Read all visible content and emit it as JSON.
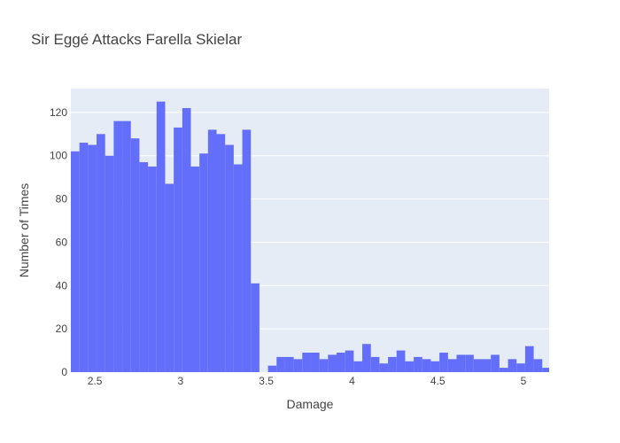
{
  "chart_data": {
    "type": "bar",
    "title": "Sir Eggé Attacks Farella Skielar",
    "xlabel": "Damage",
    "ylabel": "Number of Times",
    "xlim": [
      2.36,
      5.15
    ],
    "ylim": [
      0,
      131
    ],
    "xticks": [
      2.5,
      3,
      3.5,
      4,
      4.5,
      5
    ],
    "xtick_labels": [
      "2.5",
      "3",
      "3.5",
      "4",
      "4.5",
      "5"
    ],
    "yticks": [
      0,
      20,
      40,
      60,
      80,
      100,
      120
    ],
    "ytick_labels": [
      "0",
      "20",
      "40",
      "60",
      "80",
      "100",
      "120"
    ],
    "bin_start": 2.36,
    "bin_width": 0.05,
    "values": [
      102,
      106,
      105,
      110,
      100,
      116,
      116,
      108,
      97,
      95,
      125,
      87,
      113,
      122,
      95,
      101,
      112,
      110,
      105,
      96,
      112,
      41,
      0,
      3,
      7,
      7,
      6,
      9,
      9,
      6,
      8,
      9,
      10,
      5,
      13,
      7,
      4,
      7,
      10,
      5,
      7,
      6,
      5,
      9,
      6,
      8,
      8,
      6,
      6,
      8,
      2,
      6,
      4,
      12,
      6,
      2
    ],
    "bar_color": "#636efa",
    "plot_background": "#e5ecf6",
    "grid": true,
    "legend": "none"
  }
}
